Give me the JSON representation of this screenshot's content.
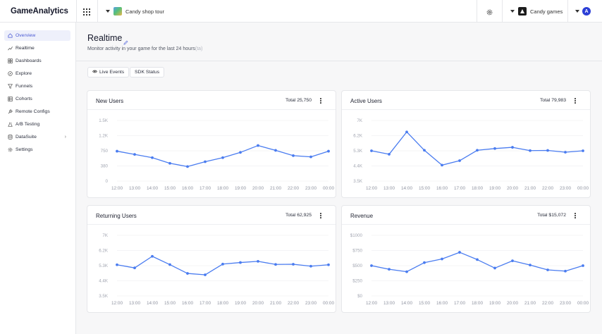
{
  "app": {
    "logo": "GameAnalytics"
  },
  "topbar": {
    "game_name": "Candy shop tour",
    "studio_name": "Candy games",
    "avatar_letter": "A"
  },
  "sidebar": {
    "items": [
      {
        "label": "Overview",
        "icon": "home-icon",
        "active": true
      },
      {
        "label": "Realtime",
        "icon": "trend-icon"
      },
      {
        "label": "Dashboards",
        "icon": "dashboard-icon"
      },
      {
        "label": "Explore",
        "icon": "compass-icon"
      },
      {
        "label": "Funnels",
        "icon": "funnel-icon"
      },
      {
        "label": "Cohorts",
        "icon": "cohorts-icon"
      },
      {
        "label": "Remote Configs",
        "icon": "wrench-icon"
      },
      {
        "label": "A/B Testing",
        "icon": "flask-icon"
      },
      {
        "label": "DataSuite",
        "icon": "database-icon",
        "chevron": "›"
      },
      {
        "label": "Settings",
        "icon": "gear-icon"
      }
    ]
  },
  "header": {
    "title": "Realtime",
    "subtitle": "Monitor activity in your game for the last 24 hours",
    "subtitle_trailing": "(ta)",
    "live_events_label": "Live Events",
    "sdk_status_label": "SDK Status"
  },
  "accent": "#4a7cf0",
  "chart_data": [
    {
      "type": "line",
      "title": "New Users",
      "total": "Total 25,750",
      "x": [
        "12:00",
        "13:00",
        "14:00",
        "15:00",
        "16:00",
        "17:00",
        "18:00",
        "19:00",
        "20:00",
        "21:00",
        "22:00",
        "23:00",
        "00:00"
      ],
      "y_ticks": [
        "1.5K",
        "1.2K",
        "750",
        "380",
        "0"
      ],
      "ylim": [
        0,
        1500
      ],
      "values": [
        740,
        660,
        580,
        440,
        360,
        480,
        580,
        710,
        880,
        760,
        630,
        600,
        740
      ]
    },
    {
      "type": "line",
      "title": "Active Users",
      "total": "Total 79,983",
      "x": [
        "12:00",
        "13:00",
        "14:00",
        "15:00",
        "16:00",
        "17:00",
        "18:00",
        "19:00",
        "20:00",
        "21:00",
        "22:00",
        "23:00",
        "00:00"
      ],
      "y_ticks": [
        "7K",
        "6.2K",
        "5.3K",
        "4.4K",
        "3.5K"
      ],
      "ylim": [
        3500,
        7000
      ],
      "values": [
        5250,
        5050,
        6340,
        5280,
        4420,
        4680,
        5280,
        5380,
        5450,
        5260,
        5270,
        5170,
        5250
      ]
    },
    {
      "type": "line",
      "title": "Returning Users",
      "total": "Total 62,925",
      "x": [
        "12:00",
        "13:00",
        "14:00",
        "15:00",
        "16:00",
        "17:00",
        "18:00",
        "19:00",
        "20:00",
        "21:00",
        "22:00",
        "23:00",
        "00:00"
      ],
      "y_ticks": [
        "7K",
        "6.2K",
        "5.3K",
        "4.4K",
        "3.5K"
      ],
      "ylim": [
        3500,
        7000
      ],
      "values": [
        5300,
        5120,
        5790,
        5310,
        4800,
        4720,
        5340,
        5430,
        5500,
        5320,
        5330,
        5220,
        5300
      ]
    },
    {
      "type": "line",
      "title": "Revenue",
      "total": "Total $15,072",
      "x": [
        "12:00",
        "13:00",
        "14:00",
        "15:00",
        "16:00",
        "17:00",
        "18:00",
        "19:00",
        "20:00",
        "21:00",
        "22:00",
        "23:00",
        "00:00"
      ],
      "y_ticks": [
        "$1000",
        "$750",
        "$500",
        "$250",
        "$0"
      ],
      "ylim": [
        0,
        1000
      ],
      "values": [
        500,
        440,
        400,
        550,
        610,
        720,
        600,
        460,
        580,
        510,
        430,
        410,
        500
      ]
    }
  ]
}
